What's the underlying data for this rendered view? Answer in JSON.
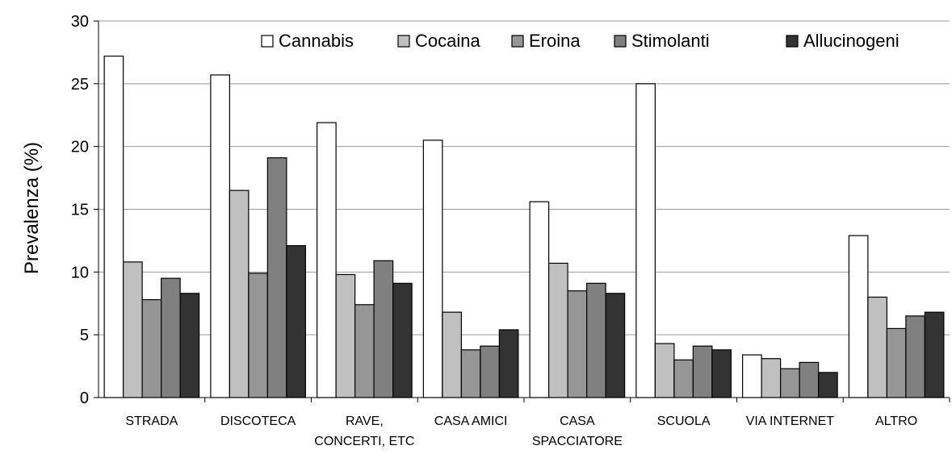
{
  "chart_data": {
    "type": "bar",
    "ylabel": "Prevalenza (%)",
    "ylim": [
      0,
      30
    ],
    "yticks": [
      0,
      5,
      10,
      15,
      20,
      25,
      30
    ],
    "grid": true,
    "legend_position": "top",
    "categories": [
      [
        "STRADA"
      ],
      [
        "DISCOTECA"
      ],
      [
        "RAVE,",
        "CONCERTI, ETC"
      ],
      [
        "CASA AMICI"
      ],
      [
        "CASA",
        "SPACCIATORE"
      ],
      [
        "SCUOLA"
      ],
      [
        "VIA INTERNET"
      ],
      [
        "ALTRO"
      ]
    ],
    "series": [
      {
        "name": "Cannabis",
        "color": "#ffffff",
        "values": [
          27.2,
          25.7,
          21.9,
          20.5,
          15.6,
          25.0,
          3.4,
          12.9
        ]
      },
      {
        "name": "Cocaina",
        "color": "#c0c0c0",
        "values": [
          10.8,
          16.5,
          9.8,
          6.8,
          10.7,
          4.3,
          3.1,
          8.0
        ]
      },
      {
        "name": "Eroina",
        "color": "#969696",
        "values": [
          7.8,
          9.9,
          7.4,
          3.8,
          8.5,
          3.0,
          2.3,
          5.5
        ]
      },
      {
        "name": "Stimolanti",
        "color": "#808080",
        "values": [
          9.5,
          19.1,
          10.9,
          4.1,
          9.1,
          4.1,
          2.8,
          6.5
        ]
      },
      {
        "name": "Allucinogeni",
        "color": "#333333",
        "values": [
          8.3,
          12.1,
          9.1,
          5.4,
          8.3,
          3.8,
          2.0,
          6.8
        ]
      }
    ]
  }
}
